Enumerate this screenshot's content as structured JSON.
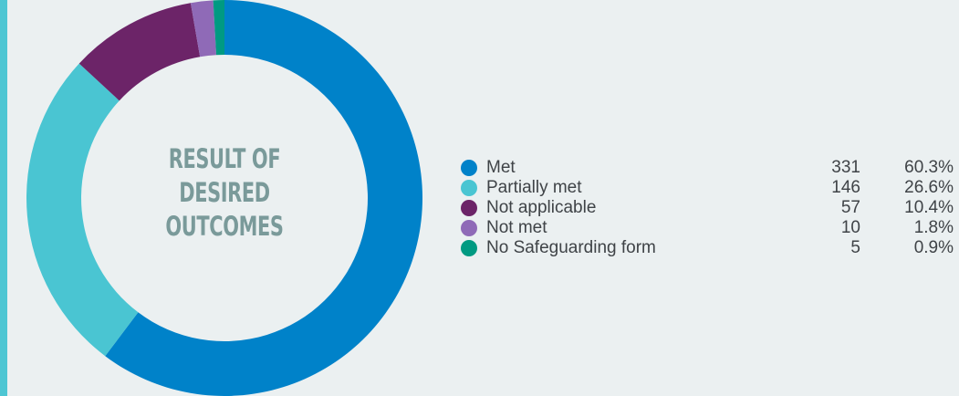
{
  "colors": {
    "background": "#ebf0f1",
    "accent_bar": "#4ec6d3",
    "title": "#7a9a9a",
    "legend_text": "#3f4347"
  },
  "chart_data": {
    "type": "pie",
    "variant": "donut",
    "title_lines": [
      "RESULT OF",
      "DESIRED",
      "OUTCOMES"
    ],
    "legend_placement": "right",
    "slices": [
      {
        "label": "Met",
        "value": 331,
        "percent": "60.3%",
        "color": "#0082c9"
      },
      {
        "label": "Partially met",
        "value": 146,
        "percent": "26.6%",
        "color": "#4ac5d2"
      },
      {
        "label": "Not applicable",
        "value": 57,
        "percent": "10.4%",
        "color": "#6c2468"
      },
      {
        "label": "Not met",
        "value": 10,
        "percent": "1.8%",
        "color": "#8f6ab7"
      },
      {
        "label": "No Safeguarding form",
        "value": 5,
        "percent": "0.9%",
        "color": "#009a82"
      }
    ]
  }
}
